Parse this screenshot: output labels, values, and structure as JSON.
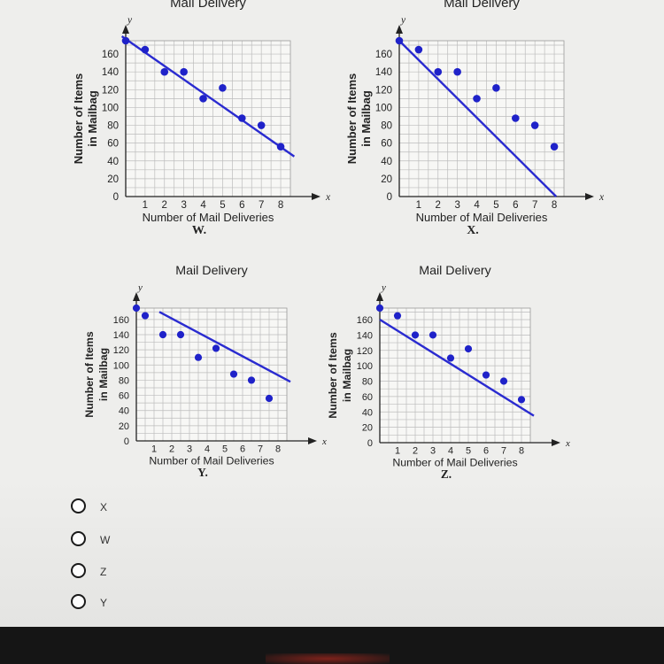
{
  "chart_data": [
    {
      "type": "scatter",
      "panel_label": "W.",
      "title": "Mail Delivery",
      "xlabel": "Number of Mail Deliveries",
      "ylabel_lines": [
        "Number of Items",
        "in Mailbag"
      ],
      "x_axis_letter": "x",
      "y_axis_letter": "y",
      "xlim": [
        0,
        8.5
      ],
      "ylim": [
        0,
        175
      ],
      "x_ticks": [
        1,
        2,
        3,
        4,
        5,
        6,
        7,
        8
      ],
      "y_ticks": [
        0,
        20,
        40,
        60,
        80,
        100,
        120,
        140,
        160
      ],
      "grid": true,
      "points": [
        [
          0,
          175
        ],
        [
          1,
          165
        ],
        [
          2,
          140
        ],
        [
          3,
          140
        ],
        [
          4,
          110
        ],
        [
          5,
          122
        ],
        [
          6,
          88
        ],
        [
          7,
          80
        ],
        [
          8,
          56
        ]
      ],
      "fit_line": [
        [
          -0.2,
          180
        ],
        [
          8.7,
          45
        ]
      ],
      "colors": {
        "points": "#1f22c9",
        "line": "#2a2bd0"
      }
    },
    {
      "type": "scatter",
      "panel_label": "X.",
      "title": "Mail Delivery",
      "xlabel": "Number of Mail Deliveries",
      "ylabel_lines": [
        "Number of Items",
        "in Mailbag"
      ],
      "x_axis_letter": "x",
      "y_axis_letter": "y",
      "xlim": [
        0,
        8.5
      ],
      "ylim": [
        0,
        175
      ],
      "x_ticks": [
        1,
        2,
        3,
        4,
        5,
        6,
        7,
        8
      ],
      "y_ticks": [
        0,
        20,
        40,
        60,
        80,
        100,
        120,
        140,
        160
      ],
      "grid": true,
      "points": [
        [
          0,
          175
        ],
        [
          1,
          165
        ],
        [
          2,
          140
        ],
        [
          3,
          140
        ],
        [
          4,
          110
        ],
        [
          5,
          122
        ],
        [
          6,
          88
        ],
        [
          7,
          80
        ],
        [
          8,
          56
        ]
      ],
      "fit_line": [
        [
          0,
          175
        ],
        [
          8.1,
          0
        ]
      ],
      "colors": {
        "points": "#1f22c9",
        "line": "#2a2bd0"
      }
    },
    {
      "type": "scatter",
      "panel_label": "Y.",
      "title": "Mail Delivery",
      "xlabel": "Number of Mail Deliveries",
      "ylabel_lines": [
        "Number of Items",
        "in Mailbag"
      ],
      "x_axis_letter": "x",
      "y_axis_letter": "y",
      "xlim": [
        0,
        8.5
      ],
      "ylim": [
        0,
        175
      ],
      "x_ticks": [
        1,
        2,
        3,
        4,
        5,
        6,
        7,
        8
      ],
      "y_ticks": [
        0,
        20,
        40,
        60,
        80,
        100,
        120,
        140,
        160
      ],
      "grid": true,
      "points": [
        [
          0,
          175
        ],
        [
          0.5,
          165
        ],
        [
          1.5,
          140
        ],
        [
          2.5,
          140
        ],
        [
          3.5,
          110
        ],
        [
          4.5,
          122
        ],
        [
          5.5,
          88
        ],
        [
          6.5,
          80
        ],
        [
          7.5,
          56
        ]
      ],
      "fit_line": [
        [
          1.3,
          170
        ],
        [
          8.7,
          78
        ]
      ],
      "colors": {
        "points": "#1f22c9",
        "line": "#2a2bd0"
      }
    },
    {
      "type": "scatter",
      "panel_label": "Z.",
      "title": "Mail Delivery",
      "xlabel": "Number of Mail Deliveries",
      "ylabel_lines": [
        "Number of Items",
        "in Mailbag"
      ],
      "x_axis_letter": "x",
      "y_axis_letter": "y",
      "xlim": [
        0,
        8.5
      ],
      "ylim": [
        0,
        175
      ],
      "x_ticks": [
        1,
        2,
        3,
        4,
        5,
        6,
        7,
        8
      ],
      "y_ticks": [
        0,
        20,
        40,
        60,
        80,
        100,
        120,
        140,
        160
      ],
      "grid": true,
      "points": [
        [
          0,
          175
        ],
        [
          1,
          165
        ],
        [
          2,
          140
        ],
        [
          3,
          140
        ],
        [
          4,
          110
        ],
        [
          5,
          122
        ],
        [
          6,
          88
        ],
        [
          7,
          80
        ],
        [
          8,
          56
        ]
      ],
      "fit_line": [
        [
          0,
          160
        ],
        [
          8.7,
          35
        ]
      ],
      "colors": {
        "points": "#1f22c9",
        "line": "#2a2bd0"
      }
    }
  ],
  "answer_options": [
    {
      "label": "X",
      "selected": false
    },
    {
      "label": "W",
      "selected": false
    },
    {
      "label": "Z",
      "selected": false
    },
    {
      "label": "Y",
      "selected": false
    }
  ]
}
